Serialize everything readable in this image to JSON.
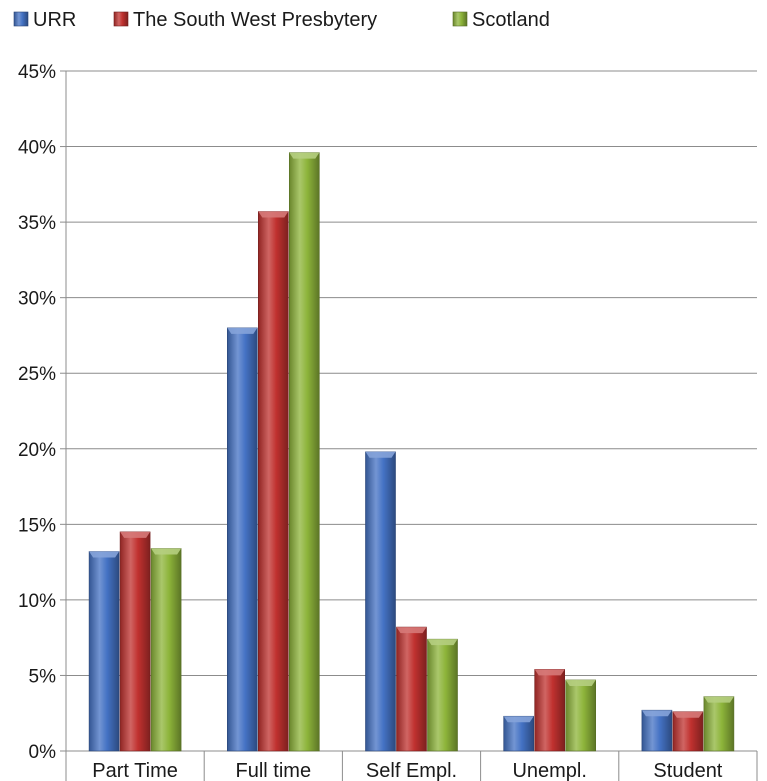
{
  "chart_data": {
    "type": "bar",
    "categories": [
      "Part Time",
      "Full time",
      "Self Empl.",
      "Unempl.",
      "Student"
    ],
    "series": [
      {
        "name": "URR",
        "values": [
          13.2,
          28.0,
          19.8,
          2.3,
          2.7
        ],
        "color": "#4472C4"
      },
      {
        "name": "The South West Presbytery",
        "values": [
          14.5,
          35.7,
          8.2,
          5.4,
          2.6
        ],
        "color": "#C0312F"
      },
      {
        "name": "Scotland",
        "values": [
          13.4,
          39.6,
          7.4,
          4.7,
          3.6
        ],
        "color": "#8DB43A"
      }
    ],
    "ylim": [
      0,
      45
    ],
    "yticks": [
      0,
      5,
      10,
      15,
      20,
      25,
      30,
      35,
      40,
      45
    ],
    "ytick_labels": [
      "0%",
      "5%",
      "10%",
      "15%",
      "20%",
      "25%",
      "30%",
      "35%",
      "40%",
      "45%"
    ],
    "grid": true,
    "legend_position": "top-left"
  }
}
